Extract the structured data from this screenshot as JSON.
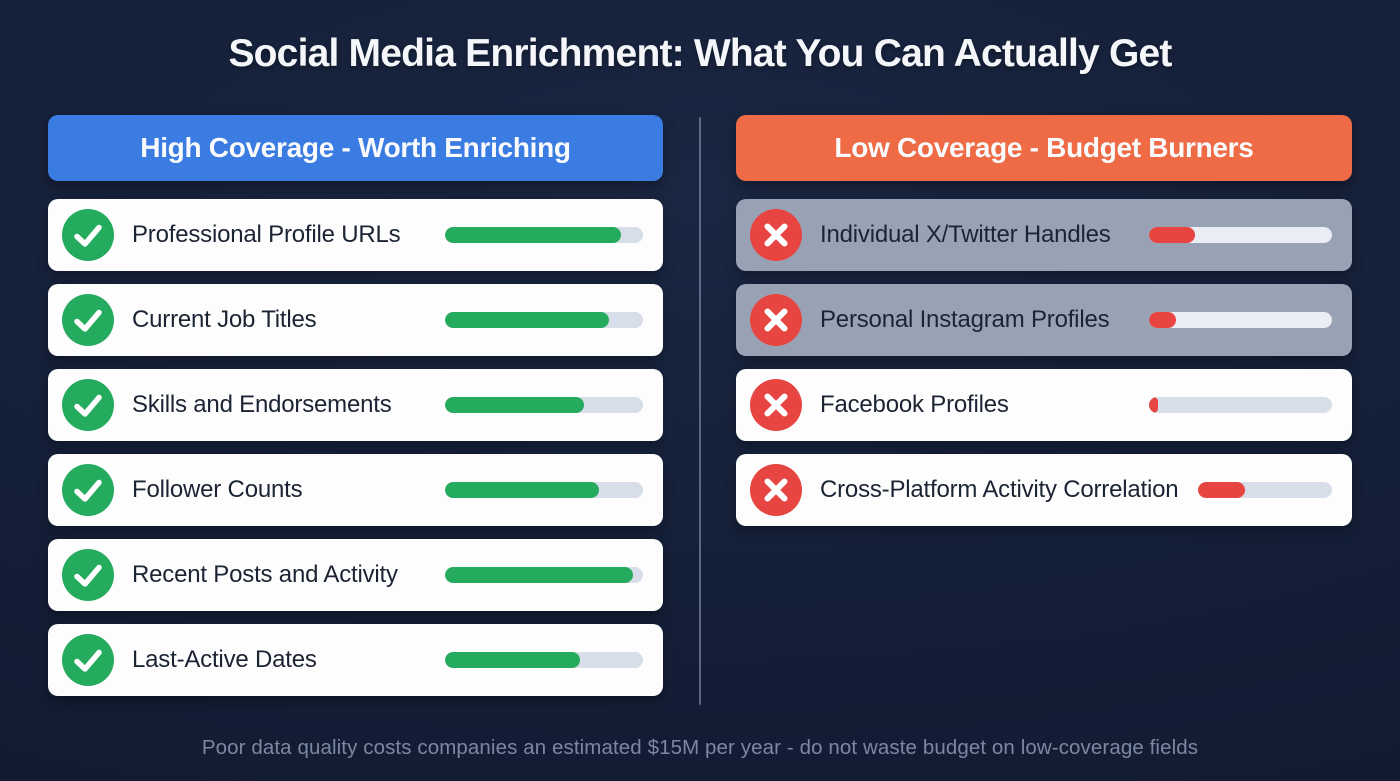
{
  "page": {
    "title": "Social Media Enrichment: What You Can Actually Get",
    "footer": "Poor data quality costs companies an estimated $15M per year - do not waste budget on low-coverage fields"
  },
  "high_column": {
    "header": "High Coverage - Worth Enriching",
    "icon": "check-circle",
    "items": [
      {
        "label": "Professional Profile URLs",
        "coverage_pct": 89
      },
      {
        "label": "Current Job Titles",
        "coverage_pct": 83
      },
      {
        "label": "Skills and Endorsements",
        "coverage_pct": 70
      },
      {
        "label": "Follower Counts",
        "coverage_pct": 78
      },
      {
        "label": "Recent Posts and Activity",
        "coverage_pct": 95
      },
      {
        "label": "Last-Active Dates",
        "coverage_pct": 68
      }
    ]
  },
  "low_column": {
    "header": "Low Coverage - Budget Burners",
    "icon": "x-circle",
    "items": [
      {
        "label": "Individual X/Twitter Handles",
        "coverage_pct": 25
      },
      {
        "label": "Personal Instagram Profiles",
        "coverage_pct": 15
      },
      {
        "label": "Facebook Profiles",
        "coverage_pct": 5
      },
      {
        "label": "Cross-Platform Activity Correlation",
        "coverage_pct": 35
      }
    ]
  },
  "colors": {
    "background": "#141f38",
    "high_header": "#3b7ce2",
    "low_header": "#ee6b46",
    "positive_green": "#25ab5e",
    "negative_red": "#e74542",
    "bar_track": "#d8dee9",
    "muted_card": "#99a2b4",
    "card": "#ffffff",
    "footer_text": "#7c87a1"
  },
  "chart_data": {
    "type": "bar",
    "title": "Social Media Enrichment: What You Can Actually Get",
    "value_unit": "% coverage (estimated from bar fill)",
    "value_range": [
      0,
      100
    ],
    "groups": [
      {
        "name": "High Coverage - Worth Enriching",
        "color": "#25ab5e",
        "categories": [
          "Professional Profile URLs",
          "Current Job Titles",
          "Skills and Endorsements",
          "Follower Counts",
          "Recent Posts and Activity",
          "Last-Active Dates"
        ],
        "values": [
          89,
          83,
          70,
          78,
          95,
          68
        ]
      },
      {
        "name": "Low Coverage - Budget Burners",
        "color": "#e74542",
        "categories": [
          "Individual X/Twitter Handles",
          "Personal Instagram Profiles",
          "Facebook Profiles",
          "Cross-Platform Activity Correlation"
        ],
        "values": [
          25,
          15,
          5,
          35
        ]
      }
    ],
    "annotation": "Poor data quality costs companies an estimated $15M per year - do not waste budget on low-coverage fields"
  }
}
